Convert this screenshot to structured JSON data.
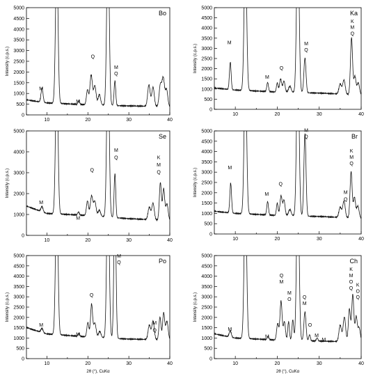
{
  "chart_data": [
    {
      "type": "line",
      "panel_label": "Bo",
      "ylabel": "Intensity (c.p.s.)",
      "xlabel": "",
      "xlim": [
        5,
        40
      ],
      "ylim": [
        0,
        5000
      ],
      "xticks": [
        "10",
        "20",
        "30",
        "40"
      ],
      "yticks": [
        "0",
        "500",
        "1000",
        "1500",
        "2000",
        "2500",
        "3000",
        "3500",
        "4000",
        "4500",
        "5000"
      ],
      "baseline": [
        [
          5,
          700
        ],
        [
          10,
          560
        ],
        [
          20,
          470
        ],
        [
          30,
          420
        ],
        [
          40,
          380
        ]
      ],
      "peaks": [
        [
          8.8,
          650,
          0.25
        ],
        [
          12.4,
          7000,
          0.3
        ],
        [
          17.8,
          180,
          0.2
        ],
        [
          19.9,
          700,
          0.25
        ],
        [
          20.8,
          1400,
          0.3
        ],
        [
          21.7,
          900,
          0.3
        ],
        [
          22.8,
          500,
          0.3
        ],
        [
          24.9,
          8000,
          0.3
        ],
        [
          26.6,
          1150,
          0.2
        ],
        [
          34.9,
          1000,
          0.3
        ],
        [
          35.9,
          900,
          0.3
        ],
        [
          37.7,
          1000,
          0.3
        ],
        [
          38.4,
          1300,
          0.3
        ],
        [
          39.2,
          800,
          0.3
        ]
      ],
      "annotations": [
        {
          "text": "M",
          "x": 8.6,
          "y": 1150
        },
        {
          "text": "M",
          "x": 17.6,
          "y": 550
        },
        {
          "text": "Q",
          "x": 21.2,
          "y": 2650
        },
        {
          "text": "M",
          "x": 26.9,
          "y": 2150
        },
        {
          "text": "Q",
          "x": 26.9,
          "y": 1850
        }
      ]
    },
    {
      "type": "line",
      "panel_label": "Ka",
      "ylabel": "Intensity (c.p.s.)",
      "xlabel": "",
      "xlim": [
        5,
        40
      ],
      "ylim": [
        0,
        5000
      ],
      "xticks": [
        "10",
        "20",
        "30",
        "40"
      ],
      "yticks": [
        "0",
        "500",
        "1000",
        "1500",
        "2000",
        "2500",
        "3000",
        "3500",
        "4000",
        "4500",
        "5000"
      ],
      "baseline": [
        [
          5,
          1050
        ],
        [
          10,
          950
        ],
        [
          20,
          850
        ],
        [
          30,
          800
        ],
        [
          40,
          700
        ]
      ],
      "peaks": [
        [
          8.8,
          1350,
          0.2
        ],
        [
          12.4,
          7000,
          0.3
        ],
        [
          17.7,
          450,
          0.2
        ],
        [
          20.0,
          450,
          0.2
        ],
        [
          20.8,
          650,
          0.25
        ],
        [
          21.6,
          550,
          0.25
        ],
        [
          23.0,
          300,
          0.3
        ],
        [
          24.9,
          8000,
          0.3
        ],
        [
          26.6,
          1700,
          0.25
        ],
        [
          35.0,
          500,
          0.3
        ],
        [
          35.9,
          700,
          0.3
        ],
        [
          37.7,
          2800,
          0.25
        ],
        [
          38.5,
          900,
          0.25
        ],
        [
          39.3,
          600,
          0.3
        ]
      ],
      "annotations": [
        {
          "text": "M",
          "x": 8.6,
          "y": 3200
        },
        {
          "text": "M",
          "x": 17.6,
          "y": 1500
        },
        {
          "text": "Q",
          "x": 21.0,
          "y": 1950
        },
        {
          "text": "M",
          "x": 26.9,
          "y": 3150
        },
        {
          "text": "Q",
          "x": 26.9,
          "y": 2850
        },
        {
          "text": "K",
          "x": 37.9,
          "y": 4250
        },
        {
          "text": "M",
          "x": 37.9,
          "y": 3950
        },
        {
          "text": "Q",
          "x": 37.9,
          "y": 3650
        }
      ]
    },
    {
      "type": "line",
      "panel_label": "Se",
      "ylabel": "Intensity (c.p.s.)",
      "xlabel": "",
      "xlim": [
        5,
        40
      ],
      "ylim": [
        0,
        5000
      ],
      "xticks": [
        "10",
        "20",
        "30",
        "40"
      ],
      "yticks": [
        "0",
        "1000",
        "2000",
        "3000",
        "4000",
        "5000"
      ],
      "baseline": [
        [
          5,
          1400
        ],
        [
          10,
          1050
        ],
        [
          20,
          950
        ],
        [
          30,
          800
        ],
        [
          40,
          700
        ]
      ],
      "peaks": [
        [
          8.8,
          250,
          0.25
        ],
        [
          12.4,
          7000,
          0.3
        ],
        [
          17.7,
          150,
          0.2
        ],
        [
          19.9,
          700,
          0.25
        ],
        [
          20.9,
          950,
          0.3
        ],
        [
          21.7,
          700,
          0.3
        ],
        [
          22.8,
          300,
          0.3
        ],
        [
          24.9,
          8000,
          0.3
        ],
        [
          26.6,
          2100,
          0.2
        ],
        [
          35.0,
          600,
          0.3
        ],
        [
          35.9,
          800,
          0.3
        ],
        [
          37.7,
          1800,
          0.25
        ],
        [
          38.5,
          1500,
          0.25
        ],
        [
          39.3,
          800,
          0.3
        ]
      ],
      "annotations": [
        {
          "text": "M",
          "x": 8.6,
          "y": 1500
        },
        {
          "text": "M",
          "x": 17.6,
          "y": 750
        },
        {
          "text": "Q",
          "x": 21.0,
          "y": 3050
        },
        {
          "text": "M",
          "x": 26.9,
          "y": 4000
        },
        {
          "text": "Q",
          "x": 26.9,
          "y": 3650
        },
        {
          "text": "K",
          "x": 37.3,
          "y": 3650
        },
        {
          "text": "M",
          "x": 37.3,
          "y": 3300
        },
        {
          "text": "Q",
          "x": 37.3,
          "y": 2950
        }
      ]
    },
    {
      "type": "line",
      "panel_label": "Br",
      "ylabel": "Intensity (c.p.s.)",
      "xlabel": "",
      "xlim": [
        5,
        40
      ],
      "ylim": [
        0,
        5000
      ],
      "xticks": [
        "10",
        "20",
        "30",
        "40"
      ],
      "yticks": [
        "0",
        "500",
        "1000",
        "1500",
        "2000",
        "2500",
        "3000",
        "3500",
        "4000",
        "4500",
        "5000"
      ],
      "baseline": [
        [
          5,
          1100
        ],
        [
          10,
          1000
        ],
        [
          20,
          900
        ],
        [
          30,
          850
        ],
        [
          40,
          750
        ]
      ],
      "peaks": [
        [
          8.9,
          1450,
          0.2
        ],
        [
          12.4,
          7000,
          0.3
        ],
        [
          17.7,
          650,
          0.2
        ],
        [
          20.0,
          600,
          0.2
        ],
        [
          20.9,
          950,
          0.25
        ],
        [
          21.6,
          750,
          0.25
        ],
        [
          23.0,
          300,
          0.3
        ],
        [
          24.9,
          8000,
          0.3
        ],
        [
          26.6,
          4000,
          0.25
        ],
        [
          35.0,
          500,
          0.3
        ],
        [
          35.9,
          800,
          0.3
        ],
        [
          37.6,
          2250,
          0.25
        ],
        [
          38.4,
          1000,
          0.25
        ],
        [
          39.2,
          600,
          0.3
        ]
      ],
      "annotations": [
        {
          "text": "M",
          "x": 8.7,
          "y": 3150
        },
        {
          "text": "M",
          "x": 17.5,
          "y": 1850
        },
        {
          "text": "Q",
          "x": 20.8,
          "y": 2350
        },
        {
          "text": "M",
          "x": 26.9,
          "y": 4950
        },
        {
          "text": "Q",
          "x": 26.9,
          "y": 4650
        },
        {
          "text": "K",
          "x": 37.7,
          "y": 3950
        },
        {
          "text": "M",
          "x": 37.7,
          "y": 3650
        },
        {
          "text": "Q",
          "x": 37.7,
          "y": 3350
        },
        {
          "text": "M",
          "x": 36.3,
          "y": 1950
        },
        {
          "text": "Q",
          "x": 36.3,
          "y": 1600
        }
      ]
    },
    {
      "type": "line",
      "panel_label": "Po",
      "ylabel": "Intensity (c.p.s.)",
      "xlabel": "2θ (°), CuKα",
      "xlim": [
        5,
        40
      ],
      "ylim": [
        0,
        5000
      ],
      "xticks": [
        "10",
        "20",
        "30",
        "40"
      ],
      "yticks": [
        "0",
        "500",
        "1000",
        "1500",
        "2000",
        "2500",
        "3000",
        "3500",
        "4000",
        "4500",
        "5000"
      ],
      "baseline": [
        [
          5,
          1500
        ],
        [
          10,
          1200
        ],
        [
          20,
          1050
        ],
        [
          30,
          950
        ],
        [
          40,
          900
        ]
      ],
      "peaks": [
        [
          8.8,
          200,
          0.25
        ],
        [
          12.4,
          7000,
          0.3
        ],
        [
          17.8,
          150,
          0.2
        ],
        [
          20.0,
          700,
          0.25
        ],
        [
          20.9,
          1600,
          0.25
        ],
        [
          21.7,
          700,
          0.3
        ],
        [
          22.9,
          300,
          0.3
        ],
        [
          24.9,
          8000,
          0.3
        ],
        [
          26.6,
          7000,
          0.25
        ],
        [
          35.0,
          700,
          0.3
        ],
        [
          35.9,
          900,
          0.3
        ],
        [
          37.6,
          1100,
          0.25
        ],
        [
          38.5,
          1300,
          0.25
        ],
        [
          39.3,
          900,
          0.3
        ]
      ],
      "annotations": [
        {
          "text": "M",
          "x": 8.6,
          "y": 1550
        },
        {
          "text": "M",
          "x": 17.6,
          "y": 1100
        },
        {
          "text": "Q",
          "x": 20.9,
          "y": 3000
        },
        {
          "text": "M",
          "x": 27.6,
          "y": 4900
        },
        {
          "text": "Q",
          "x": 27.6,
          "y": 4600
        },
        {
          "text": "M",
          "x": 36.3,
          "y": 1650
        },
        {
          "text": "Q",
          "x": 36.3,
          "y": 1300
        }
      ]
    },
    {
      "type": "line",
      "panel_label": "Ch",
      "ylabel": "Intensity (c.p.s.)",
      "xlabel": "2θ (°), CuKα",
      "xlim": [
        5,
        40
      ],
      "ylim": [
        0,
        5000
      ],
      "xticks": [
        "10",
        "20",
        "30",
        "40"
      ],
      "yticks": [
        "0",
        "500",
        "1000",
        "1500",
        "2000",
        "2500",
        "3000",
        "3500",
        "4000",
        "4500",
        "5000"
      ],
      "baseline": [
        [
          5,
          1200
        ],
        [
          10,
          1000
        ],
        [
          20,
          900
        ],
        [
          30,
          850
        ],
        [
          40,
          800
        ]
      ],
      "peaks": [
        [
          8.8,
          300,
          0.25
        ],
        [
          12.4,
          7000,
          0.3
        ],
        [
          17.8,
          150,
          0.2
        ],
        [
          20.1,
          800,
          0.25
        ],
        [
          20.9,
          1900,
          0.25
        ],
        [
          21.7,
          900,
          0.25
        ],
        [
          22.7,
          900,
          0.2
        ],
        [
          23.7,
          1000,
          0.2
        ],
        [
          24.9,
          8000,
          0.3
        ],
        [
          26.6,
          1400,
          0.25
        ],
        [
          27.7,
          300,
          0.2
        ],
        [
          29.5,
          150,
          0.2
        ],
        [
          35.0,
          800,
          0.3
        ],
        [
          36.0,
          1200,
          0.3
        ],
        [
          37.2,
          1600,
          0.25
        ],
        [
          38.0,
          2300,
          0.25
        ],
        [
          38.8,
          1200,
          0.25
        ],
        [
          39.5,
          700,
          0.3
        ]
      ],
      "annotations": [
        {
          "text": "M",
          "x": 8.7,
          "y": 1350
        },
        {
          "text": "M",
          "x": 17.6,
          "y": 1000
        },
        {
          "text": "Q",
          "x": 21.0,
          "y": 3950
        },
        {
          "text": "M",
          "x": 21.0,
          "y": 3650
        },
        {
          "text": "M",
          "x": 22.9,
          "y": 3100
        },
        {
          "text": "O",
          "x": 22.9,
          "y": 2800
        },
        {
          "text": "Q",
          "x": 26.5,
          "y": 2900
        },
        {
          "text": "M",
          "x": 26.5,
          "y": 2600
        },
        {
          "text": "O",
          "x": 27.8,
          "y": 1550
        },
        {
          "text": "M",
          "x": 29.4,
          "y": 1050
        },
        {
          "text": "M",
          "x": 31.1,
          "y": 850
        },
        {
          "text": "K",
          "x": 37.6,
          "y": 4250
        },
        {
          "text": "M",
          "x": 37.6,
          "y": 3950
        },
        {
          "text": "O",
          "x": 37.6,
          "y": 3650
        },
        {
          "text": "Q",
          "x": 37.6,
          "y": 3350
        },
        {
          "text": "K",
          "x": 39.2,
          "y": 3500
        },
        {
          "text": "O",
          "x": 39.2,
          "y": 3200
        },
        {
          "text": "Q",
          "x": 39.2,
          "y": 2900
        }
      ]
    }
  ]
}
